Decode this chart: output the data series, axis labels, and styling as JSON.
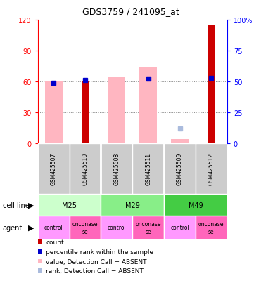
{
  "title": "GDS3759 / 241095_at",
  "samples": [
    "GSM425507",
    "GSM425510",
    "GSM425508",
    "GSM425511",
    "GSM425509",
    "GSM425512"
  ],
  "count_values": [
    0,
    60,
    0,
    0,
    0,
    115
  ],
  "percentile_values": [
    49,
    51,
    null,
    52,
    null,
    53
  ],
  "pink_bar_values": [
    60,
    0,
    65,
    74,
    4,
    0
  ],
  "light_blue_values": [
    null,
    null,
    null,
    null,
    12,
    null
  ],
  "left_ylim": [
    0,
    120
  ],
  "right_ylim": [
    0,
    100
  ],
  "left_yticks": [
    0,
    30,
    60,
    90,
    120
  ],
  "right_yticks": [
    0,
    25,
    50,
    75,
    100
  ],
  "right_yticklabels": [
    "0",
    "25",
    "50",
    "75",
    "100%"
  ],
  "count_color": "#cc0000",
  "percentile_color": "#0000cc",
  "pink_bar_color": "#ffb6c1",
  "light_blue_color": "#aabbdd",
  "grid_color": "#888888",
  "cell_line_colors": [
    "#ccffcc",
    "#88ee88",
    "#44cc44"
  ],
  "agent_control_color": "#ff99ff",
  "agent_onconase_color": "#ff66bb",
  "gsm_bg_color": "#cccccc",
  "legend_items": [
    {
      "color": "#cc0000",
      "label": "count"
    },
    {
      "color": "#0000cc",
      "label": "percentile rank within the sample"
    },
    {
      "color": "#ffb6c1",
      "label": "value, Detection Call = ABSENT"
    },
    {
      "color": "#aabbdd",
      "label": "rank, Detection Call = ABSENT"
    }
  ]
}
